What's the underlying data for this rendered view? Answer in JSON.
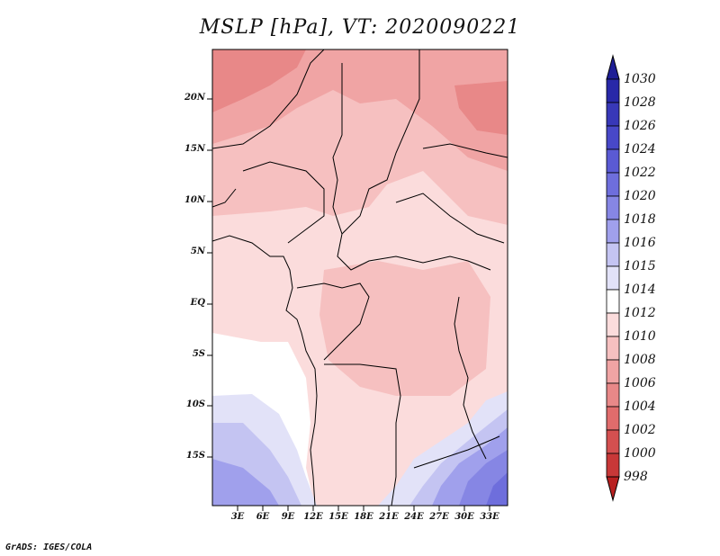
{
  "title": "MSLP [hPa], VT: 2020090221",
  "credit": "GrADS: IGES/COLA",
  "map": {
    "region": "Central Africa",
    "variable": "MSLP",
    "units": "hPa",
    "valid_time": "2020090221",
    "lat_ticks": [
      "20N",
      "15N",
      "10N",
      "5N",
      "EQ",
      "5S",
      "10S",
      "15S"
    ],
    "lon_ticks": [
      "3E",
      "6E",
      "9E",
      "12E",
      "15E",
      "18E",
      "21E",
      "24E",
      "27E",
      "30E",
      "33E"
    ]
  },
  "colorbar": {
    "levels": [
      "1030",
      "1028",
      "1026",
      "1024",
      "1022",
      "1020",
      "1018",
      "1016",
      "1015",
      "1014",
      "1012",
      "1010",
      "1008",
      "1006",
      "1004",
      "1002",
      "1000",
      "998"
    ],
    "colors": [
      "#1e1e96",
      "#2828a8",
      "#3838b8",
      "#4848c8",
      "#5a5ad4",
      "#6e6edc",
      "#8686e4",
      "#a0a0ec",
      "#c4c4f2",
      "#e2e2f8",
      "#ffffff",
      "#fbdcdc",
      "#f6c0c0",
      "#f0a4a4",
      "#e88888",
      "#e06c6c",
      "#d45050",
      "#c83838",
      "#b82020"
    ]
  }
}
